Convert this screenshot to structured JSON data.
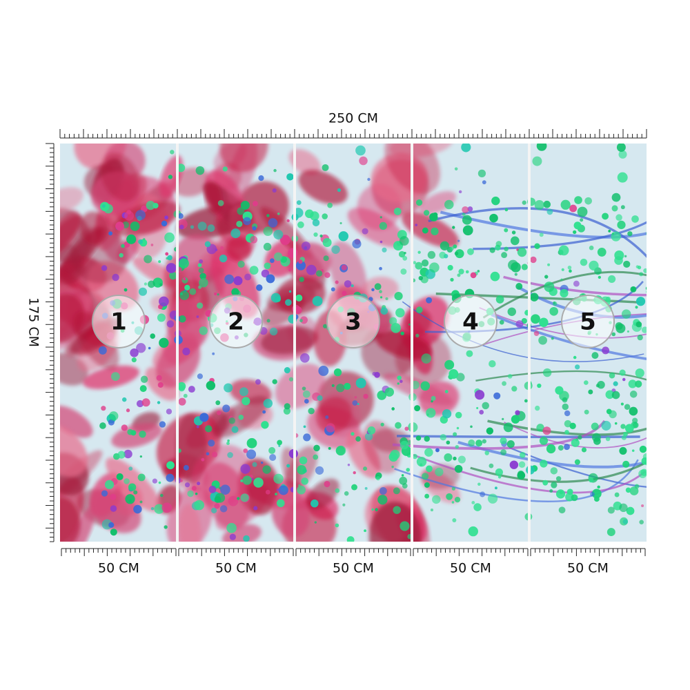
{
  "dimensions": {
    "width": "250 CM",
    "height": "175 CM"
  },
  "panels": [
    {
      "number": "1",
      "width": "50 CM"
    },
    {
      "number": "2",
      "width": "50 CM"
    },
    {
      "number": "3",
      "width": "50 CM"
    },
    {
      "number": "4",
      "width": "50 CM"
    },
    {
      "number": "5",
      "width": "50 CM"
    }
  ]
}
